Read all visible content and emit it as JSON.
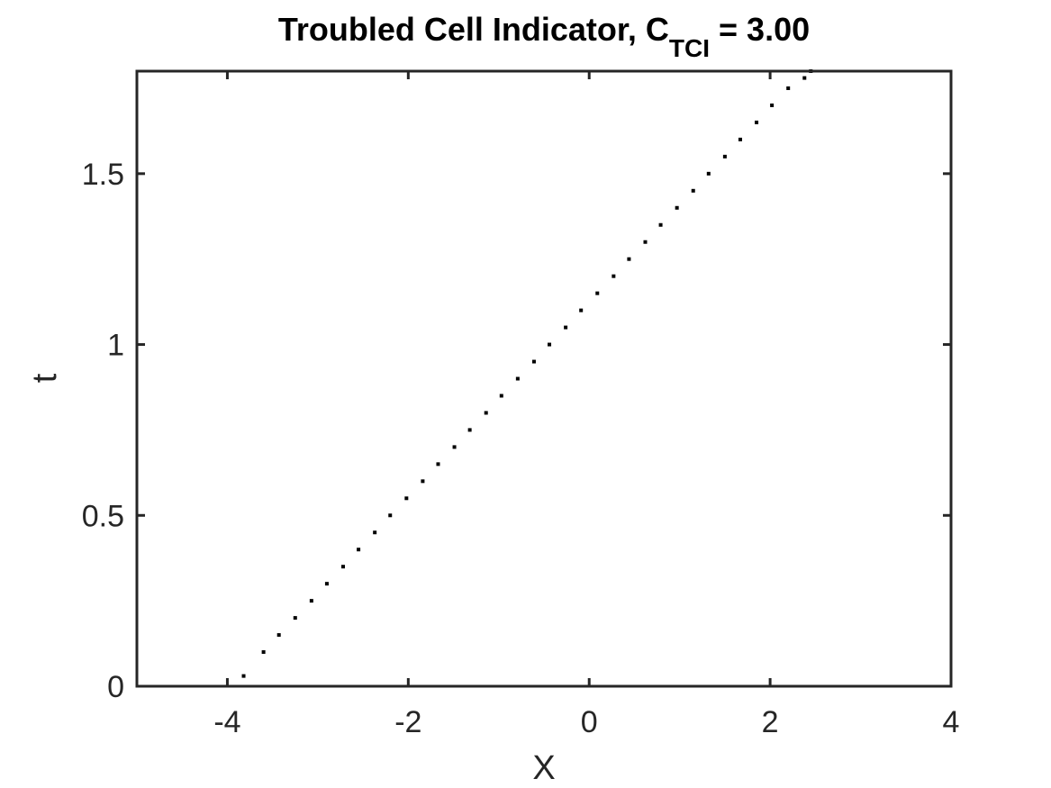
{
  "chart_data": {
    "type": "scatter",
    "title": {
      "main": "Troubled Cell Indicator, C",
      "subscript": "TCI",
      "suffix": " = 3.00"
    },
    "xlabel": "X",
    "ylabel": "t",
    "xlim": [
      -5,
      4
    ],
    "ylim": [
      0,
      1.8
    ],
    "xticks": [
      -4,
      -2,
      0,
      2,
      4
    ],
    "xtick_labels": [
      "-4",
      "-2",
      "0",
      "2",
      "4"
    ],
    "yticks": [
      0,
      0.5,
      1,
      1.5
    ],
    "ytick_labels": [
      "0",
      "0.5",
      "1",
      "1.5"
    ],
    "grid": false,
    "marker_color": "#000000",
    "series": [
      {
        "x": [
          -3.82,
          -3.6,
          -3.43,
          -3.25,
          -3.07,
          -2.9,
          -2.72,
          -2.55,
          -2.37,
          -2.2,
          -2.02,
          -1.84,
          -1.67,
          -1.49,
          -1.32,
          -1.14,
          -0.97,
          -0.79,
          -0.61,
          -0.44,
          -0.26,
          -0.09,
          0.09,
          0.27,
          0.44,
          0.62,
          0.79,
          0.97,
          1.15,
          1.32,
          1.5,
          1.67,
          1.85,
          2.02,
          2.2,
          2.38,
          2.45
        ],
        "y": [
          0.03,
          0.1,
          0.15,
          0.2,
          0.25,
          0.3,
          0.35,
          0.4,
          0.45,
          0.5,
          0.55,
          0.6,
          0.65,
          0.7,
          0.75,
          0.8,
          0.85,
          0.9,
          0.95,
          1.0,
          1.05,
          1.1,
          1.15,
          1.2,
          1.25,
          1.3,
          1.35,
          1.4,
          1.45,
          1.5,
          1.55,
          1.6,
          1.65,
          1.7,
          1.75,
          1.78,
          1.8
        ]
      }
    ]
  }
}
